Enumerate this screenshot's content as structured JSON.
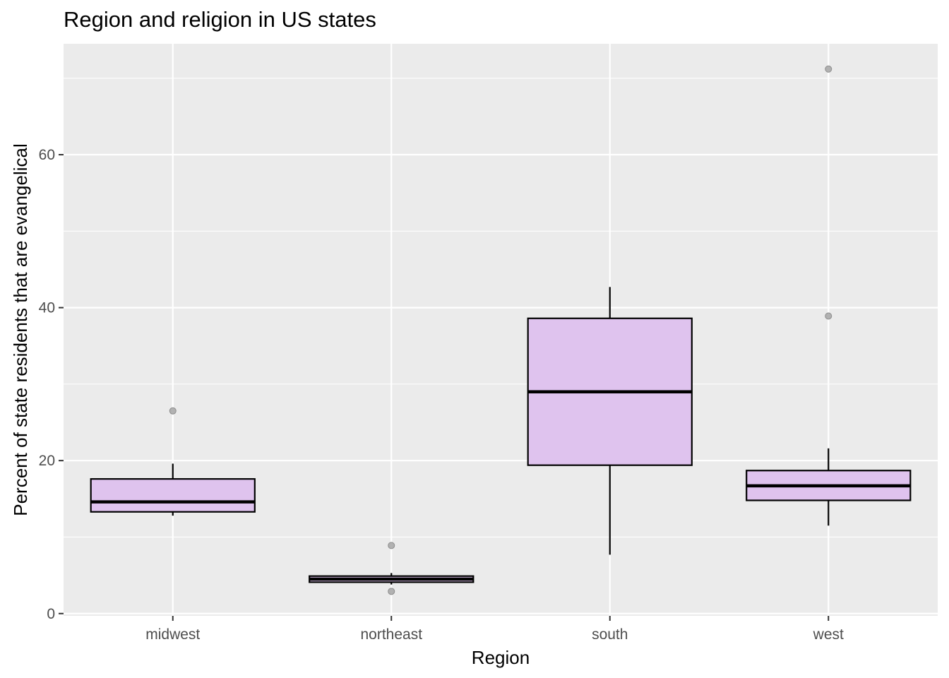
{
  "chart_data": {
    "type": "boxplot",
    "title": "Region and religion in US states",
    "xlabel": "Region",
    "ylabel": "Percent of state residents that are evangelical",
    "ylim": [
      -0.3,
      74.5
    ],
    "yticks": [
      0,
      20,
      40,
      60
    ],
    "grid": true,
    "legend": "none",
    "colors": {
      "panel": "#ebebeb",
      "grid_major": "#ffffff",
      "box_fill": "#dfc3ee",
      "box_line": "#000000",
      "outlier": "#a6a6a6"
    },
    "categories": [
      "midwest",
      "northeast",
      "south",
      "west"
    ],
    "boxes": [
      {
        "category": "midwest",
        "whisker_low": 12.8,
        "q1": 13.3,
        "median": 14.6,
        "q3": 17.6,
        "whisker_high": 19.6,
        "outliers": [
          26.5
        ]
      },
      {
        "category": "northeast",
        "whisker_low": 3.8,
        "q1": 4.1,
        "median": 4.5,
        "q3": 4.9,
        "whisker_high": 5.3,
        "outliers": [
          8.9,
          2.9
        ]
      },
      {
        "category": "south",
        "whisker_low": 7.7,
        "q1": 19.4,
        "median": 29.0,
        "q3": 38.6,
        "whisker_high": 42.7,
        "outliers": []
      },
      {
        "category": "west",
        "whisker_low": 11.5,
        "q1": 14.8,
        "median": 16.7,
        "q3": 18.7,
        "whisker_high": 21.6,
        "outliers": [
          38.9,
          71.2
        ]
      }
    ]
  }
}
